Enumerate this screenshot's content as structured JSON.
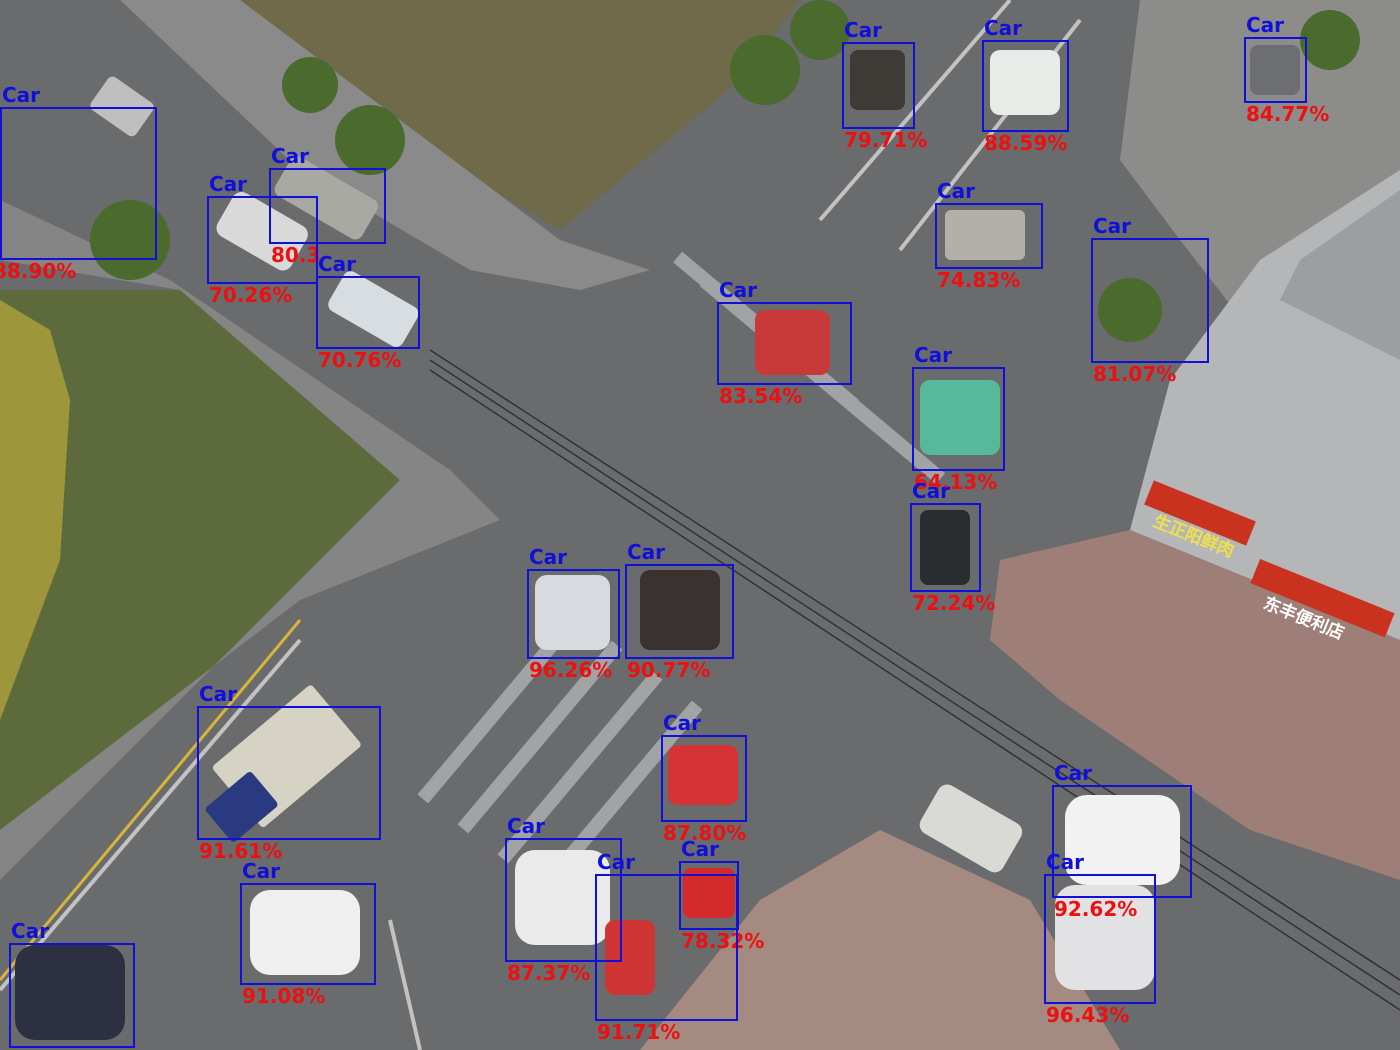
{
  "detections": [
    {
      "label": "Car",
      "score": "88.90%"
    },
    {
      "label": "Car",
      "score": "80.3"
    },
    {
      "label": "Car",
      "score": "70.26%"
    },
    {
      "label": "Car",
      "score": "70.76%"
    },
    {
      "label": "Car",
      "score": "79.71%"
    },
    {
      "label": "Car",
      "score": "88.59%"
    },
    {
      "label": "Car",
      "score": "84.77%"
    },
    {
      "label": "Car",
      "score": "74.83%"
    },
    {
      "label": "Car",
      "score": "81.07%"
    },
    {
      "label": "Car",
      "score": "83.54%"
    },
    {
      "label": "Car",
      "score": "64.13%"
    },
    {
      "label": "Car",
      "score": "72.24%"
    },
    {
      "label": "Car",
      "score": "96.26%"
    },
    {
      "label": "Car",
      "score": "90.77%"
    },
    {
      "label": "Car",
      "score": "91.61%"
    },
    {
      "label": "Car",
      "score": "87.80%"
    },
    {
      "label": "Car",
      "score": "87.37%"
    },
    {
      "label": "Car",
      "score": "78.32%"
    },
    {
      "label": "Car",
      "score": "91.71%"
    },
    {
      "label": "Car",
      "score": "91.08%"
    },
    {
      "label": "Car",
      "score": ""
    },
    {
      "label": "Car",
      "score": "92.62%"
    },
    {
      "label": "Car",
      "score": "96.43%"
    }
  ],
  "signs": {
    "shop_left": "生正阳鲜肉",
    "shop_right": "东丰便利店"
  },
  "colors": {
    "box": "#1010d8",
    "score": "#ee1010",
    "road": "#6e6f70",
    "grass": "#5d6a3c"
  }
}
